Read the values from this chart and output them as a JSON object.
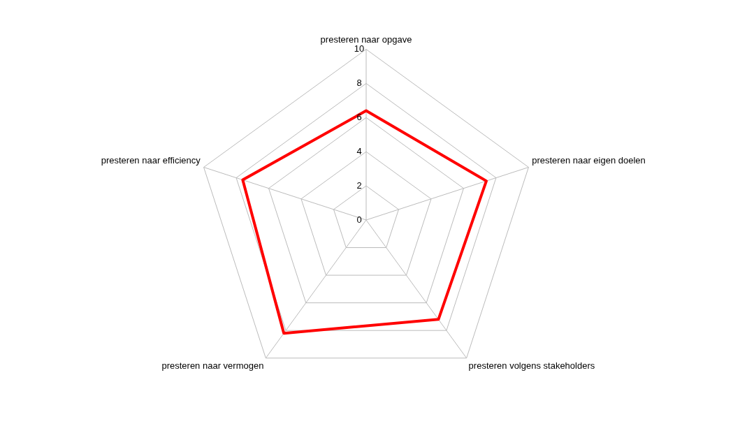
{
  "chart_data": {
    "type": "radar",
    "categories": [
      "presteren naar opgave",
      "presteren naar eigen doelen",
      "presteren volgens stakeholders",
      "presteren naar vermogen",
      "presteren naar efficiency"
    ],
    "series": [
      {
        "color": "#ff0000",
        "values": [
          6.4,
          7.4,
          7.2,
          8.2,
          7.6
        ]
      }
    ],
    "ylim": [
      0,
      10
    ],
    "yticks": [
      0,
      2,
      4,
      6,
      8,
      10
    ],
    "grid": true,
    "legend": false,
    "marker": "none",
    "line_style": "solid"
  }
}
